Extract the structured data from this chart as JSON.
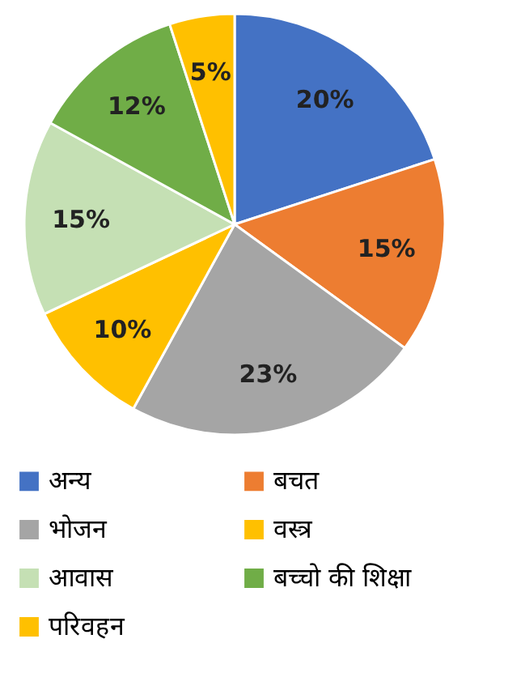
{
  "chart_data": {
    "type": "pie",
    "categories": [
      "अन्य",
      "बचत",
      "भोजन",
      "वस्त्र",
      "आवास",
      "बच्चो की शिक्षा",
      "परिवहन"
    ],
    "values": [
      20,
      15,
      23,
      10,
      15,
      12,
      5
    ],
    "value_labels": [
      "20%",
      "15%",
      "23%",
      "10%",
      "15%",
      "12%",
      "5%"
    ],
    "colors": [
      "#4472c4",
      "#ed7d31",
      "#a5a5a5",
      "#ffc000",
      "#c5e0b4",
      "#70ad47",
      "#ffc000"
    ],
    "legend": "bottom"
  }
}
